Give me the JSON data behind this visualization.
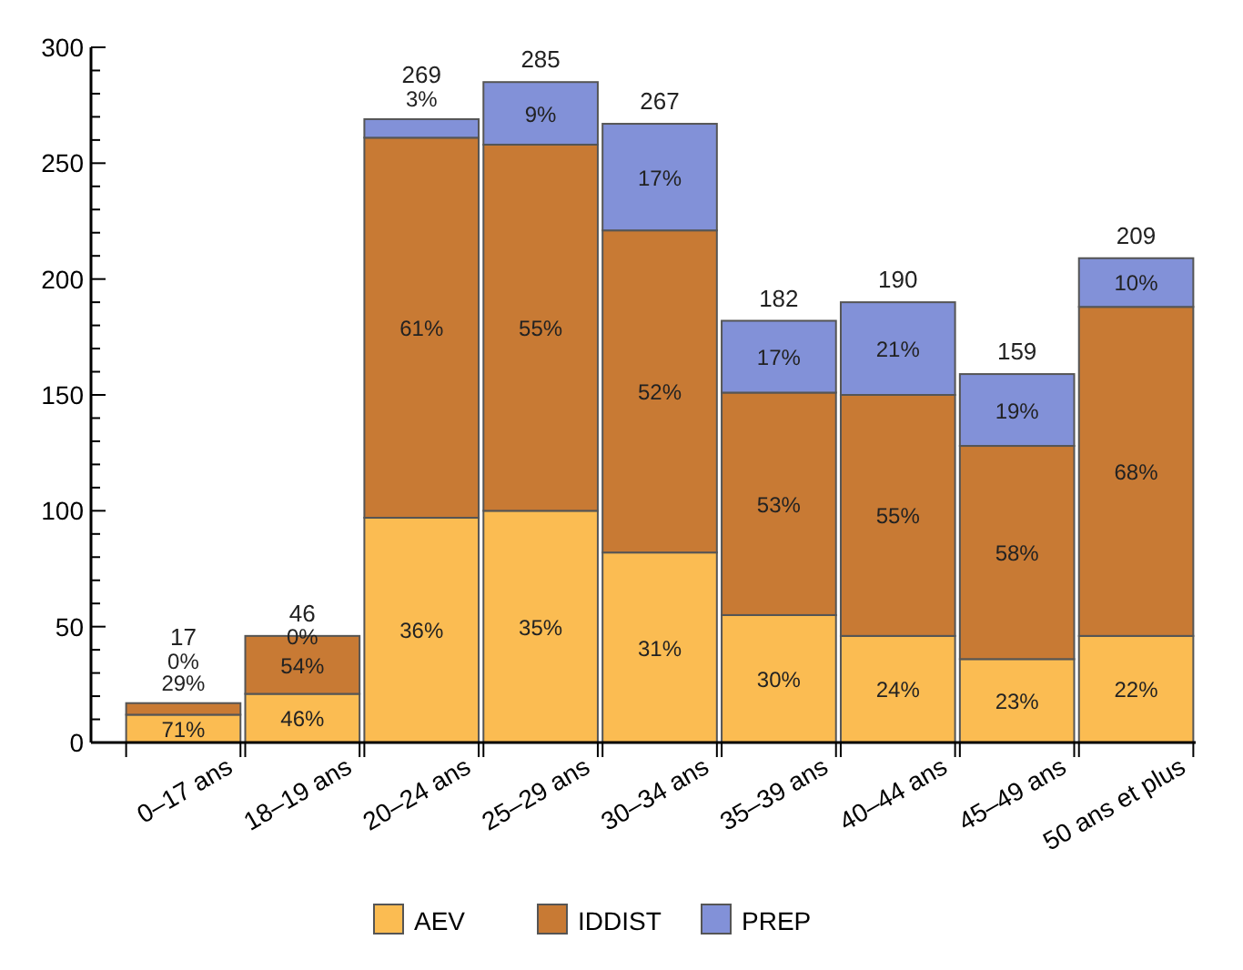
{
  "chart_data": {
    "type": "bar",
    "stacked": true,
    "categories": [
      "0–17 ans",
      "18–19 ans",
      "20–24 ans",
      "25–29 ans",
      "30–34 ans",
      "35–39 ans",
      "40–44 ans",
      "45–49 ans",
      "50 ans et plus"
    ],
    "series": [
      {
        "name": "AEV",
        "color": "#fbbc52",
        "values": [
          12,
          21,
          97,
          100,
          82,
          55,
          46,
          36,
          46
        ]
      },
      {
        "name": "IDDIST",
        "color": "#c87a34",
        "values": [
          5,
          25,
          164,
          158,
          139,
          96,
          104,
          92,
          142
        ]
      },
      {
        "name": "PREP",
        "color": "#8291d8",
        "values": [
          0,
          0,
          8,
          27,
          46,
          31,
          40,
          31,
          21
        ]
      }
    ],
    "annotations": [
      {
        "text": "71%",
        "x": "0–17 ans",
        "y": 6
      },
      {
        "text": "29%",
        "x": "0–17 ans",
        "y": 14.5
      },
      {
        "text": "0%",
        "x": "0–17 ans",
        "y": 17
      },
      {
        "text": "46%",
        "x": "18–19 ans",
        "y": 10.5
      },
      {
        "text": "54%",
        "x": "18–19 ans",
        "y": 33.5
      },
      {
        "text": "0%",
        "x": "18–19 ans",
        "y": 46
      },
      {
        "text": "36%",
        "x": "20–24 ans",
        "y": 48.5
      },
      {
        "text": "61%",
        "x": "20–24 ans",
        "y": 179
      },
      {
        "text": "3%",
        "x": "20–24 ans",
        "y": 265
      },
      {
        "text": "35%",
        "x": "25–29 ans",
        "y": 50
      },
      {
        "text": "55%",
        "x": "25–29 ans",
        "y": 179
      },
      {
        "text": "9%",
        "x": "25–29 ans",
        "y": 271.5
      },
      {
        "text": "31%",
        "x": "30–34 ans",
        "y": 41
      },
      {
        "text": "52%",
        "x": "30–34 ans",
        "y": 151.5
      },
      {
        "text": "17%",
        "x": "30–34 ans",
        "y": 244
      },
      {
        "text": "30%",
        "x": "35–39 ans",
        "y": 27.5
      },
      {
        "text": "53%",
        "x": "35–39 ans",
        "y": 103
      },
      {
        "text": "17%",
        "x": "35–39 ans",
        "y": 166.5
      },
      {
        "text": "24%",
        "x": "40–44 ans",
        "y": 23
      },
      {
        "text": "55%",
        "x": "40–44 ans",
        "y": 98
      },
      {
        "text": "21%",
        "x": "40–44 ans",
        "y": 170
      },
      {
        "text": "23%",
        "x": "45–49 ans",
        "y": 18
      },
      {
        "text": "58%",
        "x": "45–49 ans",
        "y": 82
      },
      {
        "text": "19%",
        "x": "45–49 ans",
        "y": 143.5
      },
      {
        "text": "22%",
        "x": "50 ans et plus",
        "y": 23
      },
      {
        "text": "68%",
        "x": "50 ans et plus",
        "y": 117
      },
      {
        "text": "10%",
        "x": "50 ans et plus",
        "y": 198.5
      }
    ],
    "totals": [
      "17",
      "46",
      "269",
      "285",
      "267",
      "182",
      "190",
      "159",
      "209"
    ],
    "ylim": [
      0,
      300
    ],
    "yticks": [
      0,
      {
        "value": 10,
        "label": null
      },
      {
        "value": 20,
        "label": null
      },
      {
        "value": 30,
        "label": null
      },
      {
        "value": 40,
        "label": null
      },
      50,
      {
        "value": 60,
        "label": null
      },
      {
        "value": 70,
        "label": null
      },
      {
        "value": 80,
        "label": null
      },
      {
        "value": 90,
        "label": null
      },
      100,
      {
        "value": 110,
        "label": null
      },
      {
        "value": 120,
        "label": null
      },
      {
        "value": 130,
        "label": null
      },
      {
        "value": 140,
        "label": null
      },
      150,
      {
        "value": 160,
        "label": null
      },
      {
        "value": 170,
        "label": null
      },
      {
        "value": 180,
        "label": null
      },
      {
        "value": 190,
        "label": null
      },
      200,
      {
        "value": 210,
        "label": null
      },
      {
        "value": 220,
        "label": null
      },
      {
        "value": 230,
        "label": null
      },
      {
        "value": 240,
        "label": null
      },
      250,
      {
        "value": 260,
        "label": null
      },
      {
        "value": 270,
        "label": null
      },
      {
        "value": 280,
        "label": null
      },
      {
        "value": 290,
        "label": null
      },
      300
    ],
    "grid": false,
    "legend": "bottom"
  }
}
